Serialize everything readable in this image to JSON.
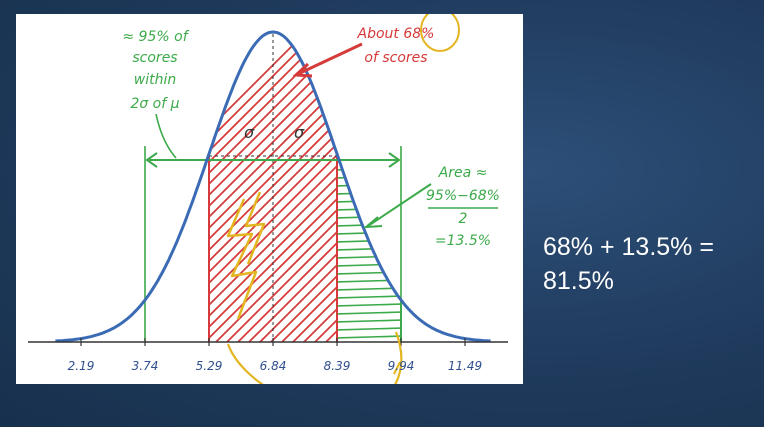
{
  "diagram": {
    "annotations": {
      "left": [
        "≈ 95% of",
        "scores",
        "within",
        "2σ of μ"
      ],
      "top": [
        "About 68%",
        "of scores"
      ],
      "right": [
        "Area ≈",
        "95%−68%",
        "2",
        "=13.5%"
      ],
      "sigma_left": "σ",
      "sigma_right": "σ"
    },
    "axis_ticks": [
      {
        "label": "2.19",
        "value": 2.19
      },
      {
        "label": "3.74",
        "value": 3.74
      },
      {
        "label": "5.29",
        "value": 5.29
      },
      {
        "label": "6.84",
        "value": 6.84
      },
      {
        "label": "8.39",
        "value": 8.39
      },
      {
        "label": "9.94",
        "value": 9.94
      },
      {
        "label": "11.49",
        "value": 11.49
      }
    ],
    "mean": 6.84,
    "sd": 1.55,
    "shaded_regions": [
      {
        "from": 5.29,
        "to": 8.39,
        "color": "#d63a3a",
        "pattern": "diagonal"
      },
      {
        "from": 8.39,
        "to": 9.94,
        "color": "#3caa4a",
        "pattern": "horizontal"
      }
    ],
    "colors": {
      "curve": "#3b6bb5",
      "red": "#d63a3a",
      "green": "#3caa4a",
      "yellow": "#e3b520",
      "tick_label": "#2f4f8f"
    }
  },
  "side_text": {
    "line1": "68% + 13.5% =",
    "line2": "81.5%"
  }
}
